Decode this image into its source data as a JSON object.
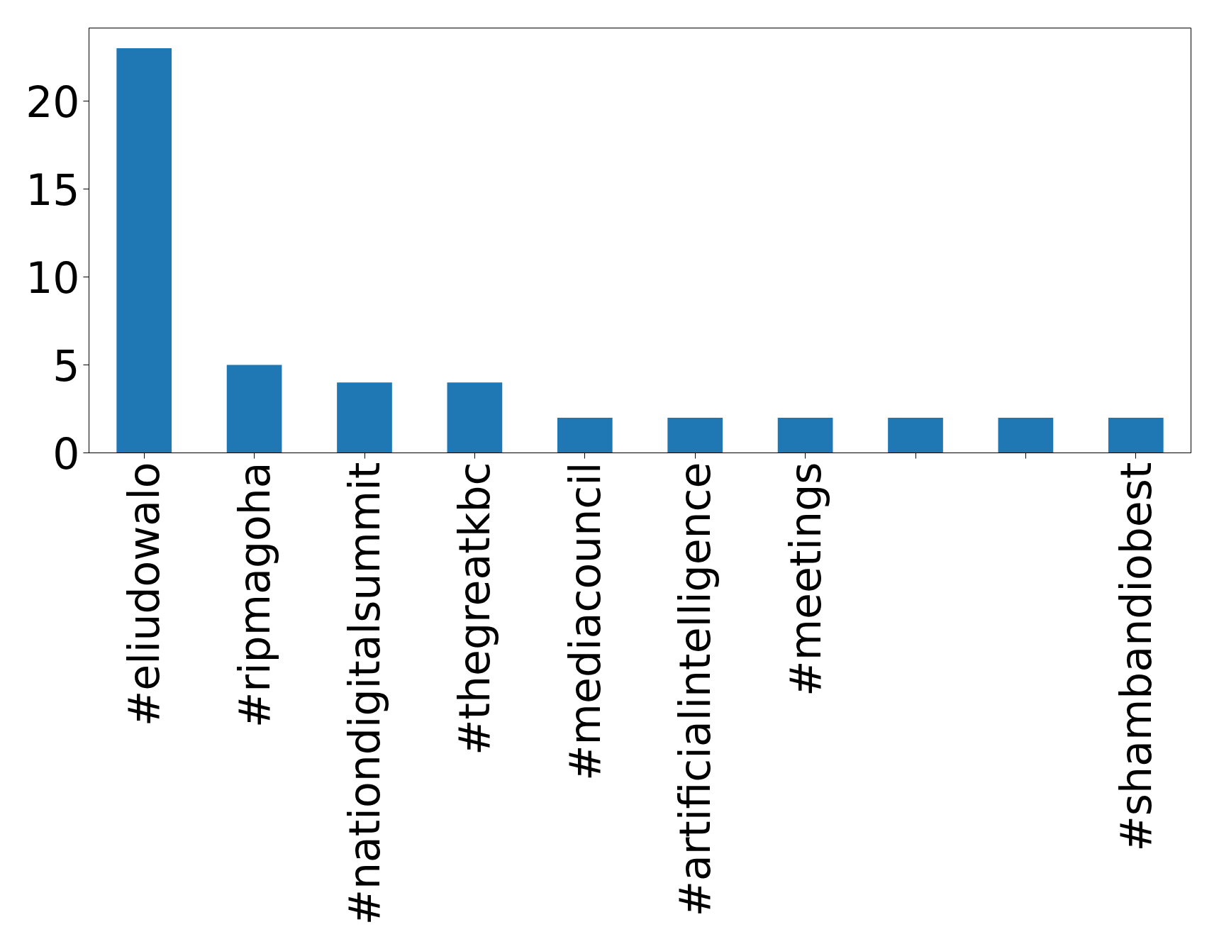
{
  "chart_data": {
    "type": "bar",
    "categories": [
      "#eliudowalo",
      "#ripmagoha",
      "#nationdigitalsummit",
      "#thegreatkbc",
      "#mediacouncil",
      "#artificialintelligence",
      "#meetings",
      null,
      null,
      "#shambandiobest"
    ],
    "values": [
      23,
      5,
      4,
      4,
      2,
      2,
      2,
      2,
      2,
      2
    ],
    "color": "#1f77b4",
    "ylim": [
      0,
      24.15
    ],
    "yticks": [
      0,
      5,
      10,
      15,
      20
    ],
    "grid": false
  }
}
